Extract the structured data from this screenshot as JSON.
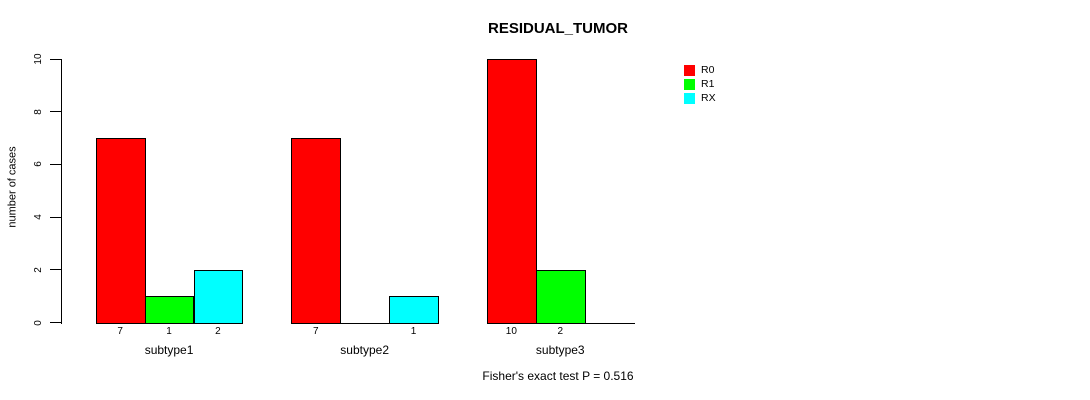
{
  "title": "RESIDUAL_TUMOR",
  "subtitle": "Fisher's exact test P = 0.516",
  "chart_data": {
    "type": "bar",
    "grouped": true,
    "title": "RESIDUAL_TUMOR",
    "categories": [
      "subtype1",
      "subtype2",
      "subtype3"
    ],
    "series": [
      {
        "name": "R0",
        "color": "#FF0000",
        "values": [
          7,
          7,
          10
        ]
      },
      {
        "name": "R1",
        "color": "#00FF00",
        "values": [
          1,
          0,
          2
        ]
      },
      {
        "name": "RX",
        "color": "#00FFFF",
        "values": [
          2,
          1,
          0
        ]
      }
    ],
    "bar_value_labels": [
      [
        "7",
        "1",
        "2"
      ],
      [
        "7",
        "",
        "1"
      ],
      [
        "10",
        "2",
        ""
      ]
    ],
    "xlabel": "",
    "ylabel": "number of cases",
    "ylim": [
      0,
      10
    ],
    "yticks": [
      0,
      2,
      4,
      6,
      8,
      10
    ],
    "grid": false,
    "legend_position": "top-right",
    "annotation": "Fisher's exact test P = 0.516",
    "background_color": "#FFFFFF",
    "text_color": "#000000",
    "axis_color": "#000000"
  }
}
